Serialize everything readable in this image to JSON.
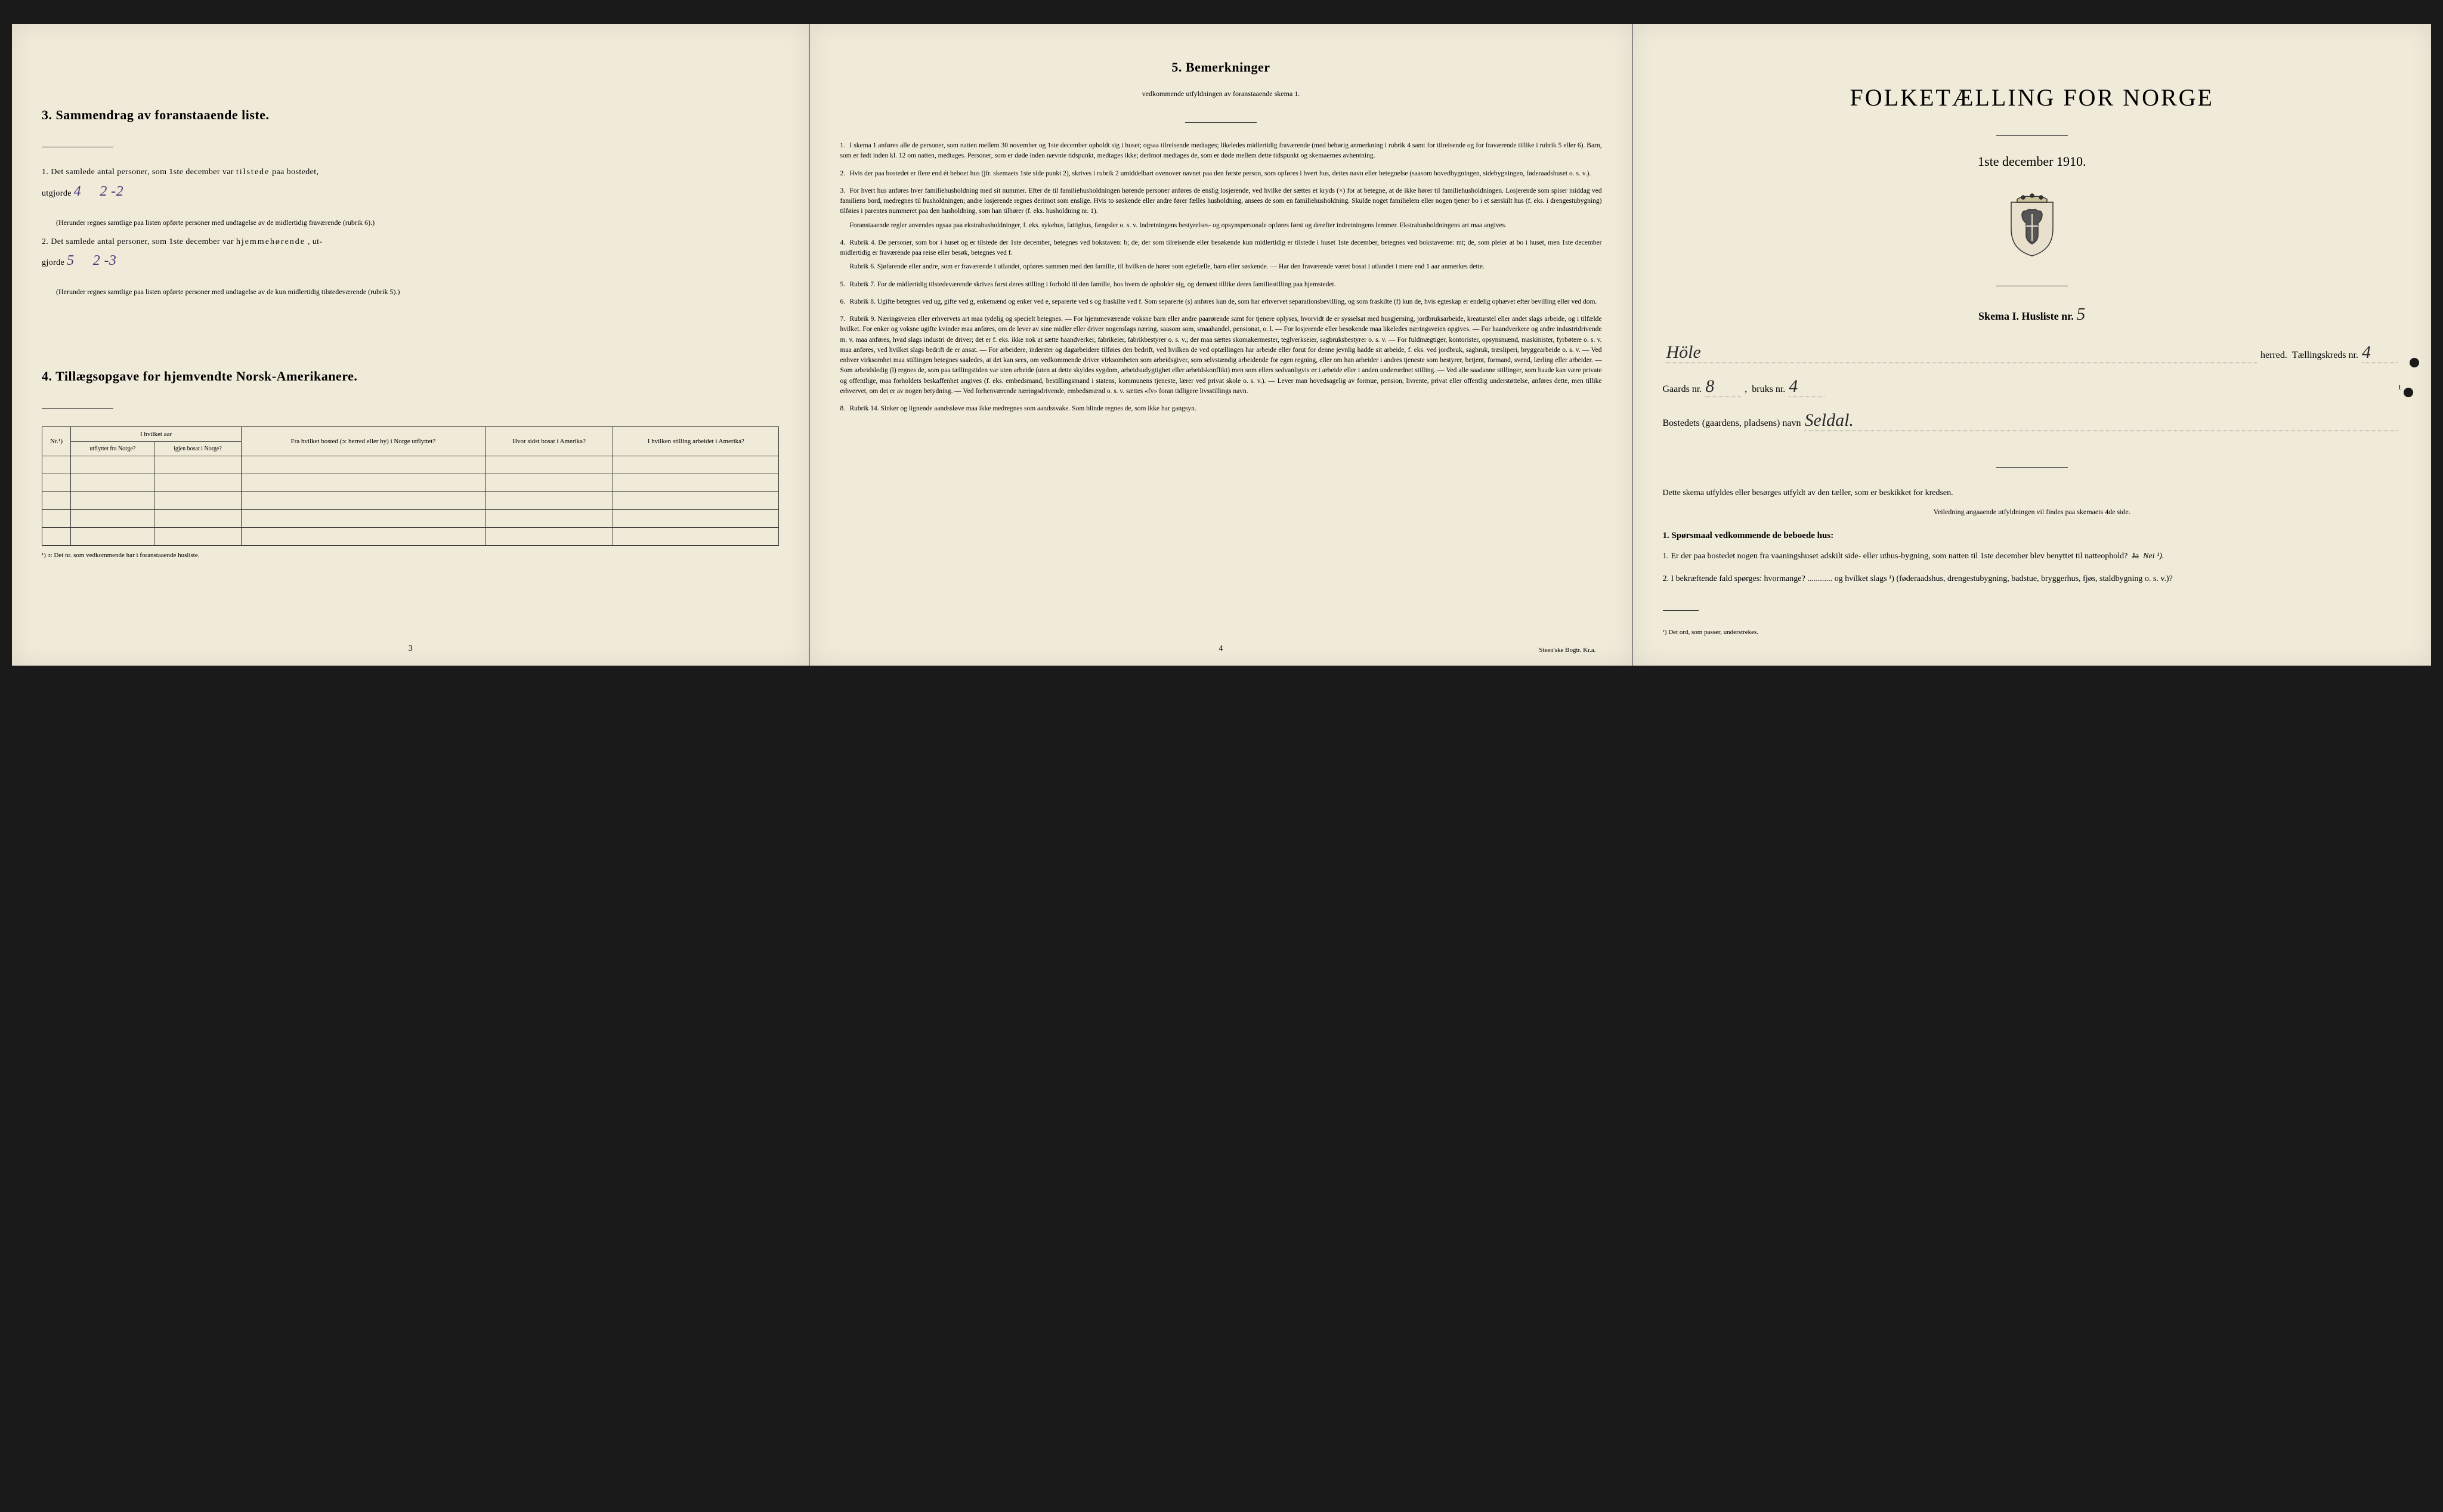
{
  "colors": {
    "paper": "#f0ead9",
    "ink": "#1a1a1a",
    "handwriting": "#4a3a7a",
    "border": "#333333"
  },
  "left": {
    "section3": {
      "title": "3.  Sammendrag av foranstaaende liste.",
      "item1_prefix": "1.  Det samlede antal personer, som 1ste december var",
      "item1_bold": "tilstede",
      "item1_suffix": "paa bostedet,",
      "item1_line2_label": "utgjorde",
      "item1_hand_a": "4",
      "item1_hand_b": "2 -2",
      "item1_paren": "(Herunder regnes samtlige paa listen opførte personer med undtagelse av de midlertidig fraværende (rubrik 6).)",
      "item2_prefix": "2.  Det samlede antal personer, som 1ste december var",
      "item2_bold": "hjemmehørende",
      "item2_suffix": ", ut-",
      "item2_line2_label": "gjorde",
      "item2_hand_a": "5",
      "item2_hand_b": "2 -3",
      "item2_paren": "(Herunder regnes samtlige paa listen opførte personer med undtagelse av de kun midlertidig tilstedeværende (rubrik 5).)"
    },
    "section4": {
      "title": "4.  Tillægsopgave for hjemvendte Norsk-Amerikanere.",
      "table": {
        "col_nr": "Nr.¹)",
        "col_aar_header": "I hvilket aar",
        "col_aar_sub1": "utflyttet fra Norge?",
        "col_aar_sub2": "igjen bosat i Norge?",
        "col_bosted": "Fra hvilket bosted (ɔ: herred eller by) i Norge utflyttet?",
        "col_amerika": "Hvor sidst bosat i Amerika?",
        "col_stilling": "I hvilken stilling arbeidet i Amerika?",
        "empty_rows": 5
      },
      "footnote": "¹) ɔ: Det nr. som vedkommende har i foranstaaende husliste."
    },
    "page_num": "3"
  },
  "middle": {
    "title": "5.  Bemerkninger",
    "subtitle": "vedkommende utfyldningen av foranstaaende skema 1.",
    "items": [
      {
        "n": "1.",
        "text": "I skema 1 anføres alle de personer, som natten mellem 30 november og 1ste december opholdt sig i huset; ogsaa tilreisende medtages; likeledes midlertidig fraværende (med behørig anmerkning i rubrik 4 samt for tilreisende og for fraværende tillike i rubrik 5 eller 6). Barn, som er født inden kl. 12 om natten, medtages. Personer, som er døde inden nævnte tidspunkt, medtages ikke; derimot medtages de, som er døde mellem dette tidspunkt og skemaernes avhentning."
      },
      {
        "n": "2.",
        "text": "Hvis der paa bostedet er flere end ét beboet hus (jfr. skemaets 1ste side punkt 2), skrives i rubrik 2 umiddelbart ovenover navnet paa den første person, som opføres i hvert hus, dettes navn eller betegnelse (saasom hovedbygningen, sidebygningen, føderaadshuset o. s. v.)."
      },
      {
        "n": "3.",
        "text": "For hvert hus anføres hver familiehusholdning med sit nummer. Efter de til familiehusholdningen hørende personer anføres de enslig losjerende, ved hvilke der sættes et kryds (×) for at betegne, at de ikke hører til familiehusholdningen. Losjerende som spiser middag ved familiens bord, medregnes til husholdningen; andre losjerende regnes derimot som enslige. Hvis to søskende eller andre fører fælles husholdning, ansees de som en familiehusholdning. Skulde noget familielem eller nogen tjener bo i et særskilt hus (f. eks. i drengestubygning) tilføies i parentes nummeret paa den husholdning, som han tilhører (f. eks. husholdning nr. 1).",
        "extra": "Foranstaaende regler anvendes ogsaa paa ekstrahusholdninger, f. eks. sykehus, fattighus, fængsler o. s. v. Indretningens bestyrelses- og opsynspersonale opføres først og derefter indretningens lemmer. Ekstrahusholdningens art maa angives."
      },
      {
        "n": "4.",
        "text": "Rubrik 4. De personer, som bor i huset og er tilstede der 1ste december, betegnes ved bokstaven: b; de, der som tilreisende eller besøkende kun midlertidig er tilstede i huset 1ste december, betegnes ved bokstaverne: mt; de, som pleier at bo i huset, men 1ste december midlertidig er fraværende paa reise eller besøk, betegnes ved f.",
        "extra": "Rubrik 6. Sjøfarende eller andre, som er fraværende i utlandet, opføres sammen med den familie, til hvilken de hører som egtefælle, barn eller søskende. — Har den fraværende været bosat i utlandet i mere end 1 aar anmerkes dette."
      },
      {
        "n": "5.",
        "text": "Rubrik 7. For de midlertidig tilstedeværende skrives først deres stilling i forhold til den familie, hos hvem de opholder sig, og dernæst tillike deres familiestilling paa hjemstedet."
      },
      {
        "n": "6.",
        "text": "Rubrik 8. Ugifte betegnes ved ug, gifte ved g, enkemænd og enker ved e, separerte ved s og fraskilte ved f. Som separerte (s) anføres kun de, som har erhvervet separationsbevilling, og som fraskilte (f) kun de, hvis egteskap er endelig ophævet efter bevilling eller ved dom."
      },
      {
        "n": "7.",
        "text": "Rubrik 9. Næringsveien eller erhvervets art maa tydelig og specielt betegnes. — For hjemmeværende voksne barn eller andre paarørende samt for tjenere oplyses, hvorvidt de er sysselsat med husgjerning, jordbruksarbeide, kreaturstel eller andet slags arbeide, og i tilfælde hvilket. For enker og voksne ugifte kvinder maa anføres, om de lever av sine midler eller driver nogenslags næring, saasom som, smaahandel, pensionat, o. l. — For losjerende eller besøkende maa likeledes næringsveien opgives. — For haandverkere og andre industridrivende m. v. maa anføres, hvad slags industri de driver; det er f. eks. ikke nok at sætte haandverker, fabrikeier, fabrikbestyrer o. s. v.; der maa sættes skomakermester, teglverkseier, sagbruksbestyrer o. s. v. — For fuldmægtiger, kontorister, opsynsmænd, maskinister, fyrbøtere o. s. v. maa anføres, ved hvilket slags bedrift de er ansat. — For arbeidere, inderster og dagarbeidere tilføies den bedrift, ved hvilken de ved optællingen har arbeide eller forut for denne jevnlig hadde sit arbeide, f. eks. ved jordbruk, sagbruk, træsliperi, bryggearbeide o. s. v. — Ved enhver virksomhet maa stillingen betegnes saaledes, at det kan sees, om vedkommende driver virksomheten som arbeidsgiver, som selvstændig arbeidende for egen regning, eller om han arbeider i andres tjeneste som bestyrer, betjent, formand, svend, lærling eller arbeider. — Som arbeidsledig (l) regnes de, som paa tællingstiden var uten arbeide (uten at dette skyldes sygdom, arbeidsudygtighet eller arbeidskonflikt) men som ellers sedvanligvis er i arbeide eller i anden underordnet stilling. — Ved alle saadanne stillinger, som baade kan være private og offentlige, maa forholdets beskaffenhet angives (f. eks. embedsmand, bestillingsmand i statens, kommunens tjeneste, lærer ved privat skole o. s. v.). — Lever man hovedsagelig av formue, pension, livrente, privat eller offentlig understøttelse, anføres dette, men tillike erhvervet, om det er av nogen betydning. — Ved forhenværende næringsdrivende, embedsmænd o. s. v. sættes «fv» foran tidligere livsstillings navn."
      },
      {
        "n": "8.",
        "text": "Rubrik 14. Sinker og lignende aandssløve maa ikke medregnes som aandssvake. Som blinde regnes de, som ikke har gangsyn."
      }
    ],
    "page_num": "4",
    "printer": "Steen'ske Bogtr. Kr.a."
  },
  "right": {
    "main_title": "FOLKETÆLLING FOR NORGE",
    "main_subtitle": "1ste december 1910.",
    "skema_label": "Skema I.   Husliste nr.",
    "husliste_nr": "5",
    "line_herred_value": "Höle",
    "line_herred_label": "herred.",
    "line_kreds_label": "Tællingskreds nr.",
    "line_kreds_value": "4",
    "line_gaards_label": "Gaards nr.",
    "line_gaards_value": "8",
    "line_bruks_label": "bruks nr.",
    "line_bruks_value": "4",
    "line_bosted_label": "Bostedets (gaardens, pladsens) navn",
    "line_bosted_value": "Seldal.",
    "body1": "Dette skema utfyldes eller besørges utfyldt av den tæller, som er beskikket for kredsen.",
    "body2": "Veiledning angaaende utfyldningen vil findes paa skemaets 4de side.",
    "q_title": "1. Spørsmaal vedkommende de beboede hus:",
    "q1": "1.  Er der paa bostedet nogen fra vaaningshuset adskilt side- eller uthus-bygning, som natten til 1ste december blev benyttet til natteophold?",
    "q1_struck": "Ja",
    "q1_answer": "Nei ¹).",
    "q2": "2.  I bekræftende fald spørges: hvormange? ............ og hvilket slags ¹) (føderaadshus, drengestubygning, badstue, bryggerhus, fjøs, staldbygning o. s. v.)?",
    "end_footnote": "¹) Det ord, som passer, understrekes."
  }
}
